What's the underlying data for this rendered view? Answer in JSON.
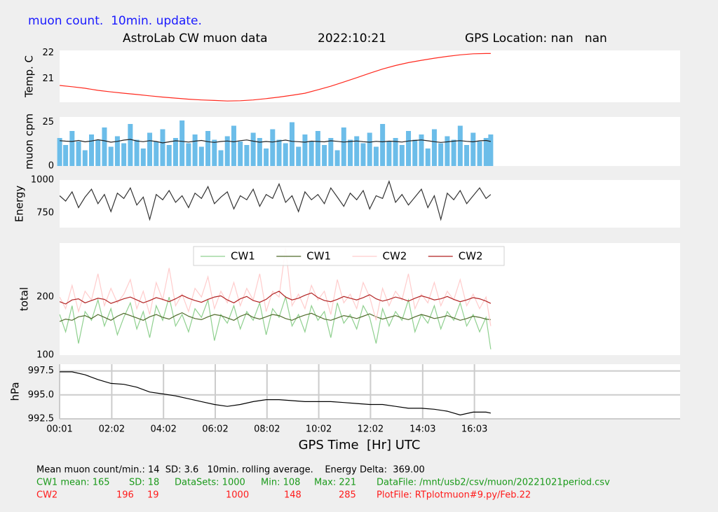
{
  "header": {
    "subtitle": "muon count.  10min. update.",
    "title": "AstroLab CW muon data",
    "date": "2022:10:21",
    "location": "GPS Location: nan   nan"
  },
  "chart_data": [
    {
      "type": "line",
      "ylabel": "Temp. C",
      "xlim": [
        0.017,
        24
      ],
      "ylim": [
        20.1,
        22.1
      ],
      "yticks": [
        21,
        22
      ],
      "x": [
        0.02,
        0.5,
        1,
        1.5,
        2,
        2.5,
        3,
        3.5,
        4,
        4.5,
        5,
        5.5,
        6,
        6.5,
        7,
        7.5,
        8,
        8.5,
        9,
        9.5,
        10,
        10.5,
        11,
        11.5,
        12,
        12.5,
        13,
        13.5,
        14,
        14.5,
        15,
        15.5,
        16,
        16.5,
        16.68
      ],
      "series": [
        {
          "color": "#ff2a1f",
          "values": [
            20.75,
            20.7,
            20.64,
            20.56,
            20.5,
            20.45,
            20.4,
            20.35,
            20.3,
            20.26,
            20.22,
            20.19,
            20.17,
            20.15,
            20.16,
            20.19,
            20.24,
            20.3,
            20.37,
            20.45,
            20.58,
            20.72,
            20.88,
            21.05,
            21.22,
            21.38,
            21.52,
            21.63,
            21.72,
            21.8,
            21.87,
            21.93,
            21.97,
            21.98,
            21.98
          ]
        }
      ]
    },
    {
      "type": "bar",
      "ylabel": "muon cpm",
      "xlim": [
        0.017,
        24
      ],
      "ylim": [
        0,
        28
      ],
      "yticks": [
        0,
        25
      ],
      "x": [
        0.02,
        0.25,
        0.5,
        0.75,
        1,
        1.25,
        1.5,
        1.75,
        2,
        2.25,
        2.5,
        2.75,
        3,
        3.25,
        3.5,
        3.75,
        4,
        4.25,
        4.5,
        4.75,
        5,
        5.25,
        5.5,
        5.75,
        6,
        6.25,
        6.5,
        6.75,
        7,
        7.25,
        7.5,
        7.75,
        8,
        8.25,
        8.5,
        8.75,
        9,
        9.25,
        9.5,
        9.75,
        10,
        10.25,
        10.5,
        10.75,
        11,
        11.25,
        11.5,
        11.75,
        12,
        12.25,
        12.5,
        12.75,
        13,
        13.25,
        13.5,
        13.75,
        14,
        14.25,
        14.5,
        14.75,
        15,
        15.25,
        15.5,
        15.75,
        16,
        16.25,
        16.5,
        16.68
      ],
      "series": [
        {
          "type": "bar",
          "color": "#6cbde9",
          "values": [
            16,
            12,
            20,
            14,
            9,
            18,
            15,
            22,
            11,
            17,
            13,
            24,
            15,
            10,
            19,
            14,
            21,
            12,
            16,
            26,
            13,
            18,
            11,
            20,
            15,
            9,
            17,
            23,
            14,
            12,
            19,
            16,
            10,
            21,
            15,
            13,
            25,
            11,
            18,
            14,
            20,
            12,
            16,
            9,
            22,
            15,
            17,
            13,
            19,
            11,
            24,
            14,
            16,
            12,
            20,
            15,
            18,
            10,
            21,
            13,
            17,
            15,
            23,
            12,
            19,
            14,
            16,
            18
          ]
        },
        {
          "type": "line",
          "color": "#222222",
          "values": [
            14.5,
            14.2,
            14.0,
            14.6,
            13.8,
            14.3,
            15.0,
            14.4,
            13.6,
            14.1,
            14.8,
            15.2,
            14.3,
            13.9,
            14.5,
            14.0,
            13.2,
            13.8,
            14.4,
            14.1,
            13.7,
            14.2,
            14.6,
            13.9,
            13.5,
            14.0,
            14.3,
            13.8,
            14.5,
            14.9,
            14.2,
            13.6,
            14.0,
            13.7,
            14.3,
            14.8,
            14.1,
            13.9,
            13.6,
            14.2,
            14.0,
            13.8,
            14.4,
            14.1,
            13.7,
            14.0,
            14.3,
            13.9,
            13.6,
            14.1,
            13.8,
            14.2,
            14.0,
            13.7,
            14.3,
            14.6,
            14.9,
            14.4,
            13.9,
            13.5,
            13.8,
            14.2,
            14.5,
            14.1,
            13.8,
            14.4,
            14.6,
            14.0
          ]
        }
      ]
    },
    {
      "type": "line",
      "ylabel": "Energy",
      "xlim": [
        0.017,
        24
      ],
      "ylim": [
        638,
        1000
      ],
      "yticks": [
        750,
        1000
      ],
      "x": [
        0.02,
        0.25,
        0.5,
        0.75,
        1,
        1.25,
        1.5,
        1.75,
        2,
        2.25,
        2.5,
        2.75,
        3,
        3.25,
        3.5,
        3.75,
        4,
        4.25,
        4.5,
        4.75,
        5,
        5.25,
        5.5,
        5.75,
        6,
        6.25,
        6.5,
        6.75,
        7,
        7.25,
        7.5,
        7.75,
        8,
        8.25,
        8.5,
        8.75,
        9,
        9.25,
        9.5,
        9.75,
        10,
        10.25,
        10.5,
        10.75,
        11,
        11.25,
        11.5,
        11.75,
        12,
        12.25,
        12.5,
        12.75,
        13,
        13.25,
        13.5,
        13.75,
        14,
        14.25,
        14.5,
        14.75,
        15,
        15.25,
        15.5,
        15.75,
        16,
        16.25,
        16.5,
        16.68
      ],
      "series": [
        {
          "color": "#333333",
          "values": [
            880,
            840,
            910,
            790,
            870,
            930,
            820,
            890,
            760,
            900,
            860,
            940,
            810,
            870,
            700,
            890,
            850,
            920,
            830,
            880,
            790,
            900,
            860,
            950,
            820,
            870,
            910,
            780,
            880,
            850,
            930,
            800,
            890,
            860,
            970,
            830,
            880,
            760,
            910,
            850,
            890,
            820,
            940,
            870,
            800,
            900,
            850,
            920,
            780,
            880,
            860,
            990,
            830,
            890,
            810,
            870,
            930,
            790,
            880,
            700,
            900,
            850,
            920,
            820,
            880,
            940,
            860,
            890
          ]
        }
      ]
    },
    {
      "type": "line",
      "ylabel": "total",
      "xlim": [
        0.017,
        24
      ],
      "ylim": [
        100,
        293
      ],
      "yticks": [
        100,
        200
      ],
      "legend": "upper center",
      "x": [
        0.02,
        0.25,
        0.5,
        0.75,
        1,
        1.25,
        1.5,
        1.75,
        2,
        2.25,
        2.5,
        2.75,
        3,
        3.25,
        3.5,
        3.75,
        4,
        4.25,
        4.5,
        4.75,
        5,
        5.25,
        5.5,
        5.75,
        6,
        6.25,
        6.5,
        6.75,
        7,
        7.25,
        7.5,
        7.75,
        8,
        8.25,
        8.5,
        8.75,
        9,
        9.25,
        9.5,
        9.75,
        10,
        10.25,
        10.5,
        10.75,
        11,
        11.25,
        11.5,
        11.75,
        12,
        12.25,
        12.5,
        12.75,
        13,
        13.25,
        13.5,
        13.75,
        14,
        14.25,
        14.5,
        14.75,
        15,
        15.25,
        15.5,
        15.75,
        16,
        16.25,
        16.5,
        16.68
      ],
      "series": [
        {
          "name": "CW1",
          "color": "#8fd08f",
          "values": [
            170,
            140,
            185,
            120,
            175,
            160,
            195,
            150,
            180,
            135,
            165,
            190,
            145,
            175,
            130,
            185,
            160,
            200,
            150,
            170,
            140,
            180,
            165,
            195,
            125,
            170,
            155,
            185,
            145,
            175,
            160,
            190,
            135,
            180,
            165,
            200,
            150,
            170,
            140,
            185,
            160,
            175,
            130,
            190,
            155,
            170,
            145,
            185,
            165,
            120,
            180,
            150,
            175,
            160,
            195,
            140,
            170,
            155,
            185,
            145,
            175,
            160,
            190,
            150,
            170,
            140,
            165,
            110
          ]
        },
        {
          "name": "CW1",
          "color": "#4f6b2a",
          "values": [
            158,
            162,
            160,
            166,
            168,
            163,
            170,
            165,
            160,
            167,
            172,
            168,
            164,
            160,
            166,
            170,
            165,
            162,
            168,
            173,
            167,
            163,
            161,
            166,
            170,
            168,
            164,
            160,
            167,
            171,
            165,
            162,
            166,
            170,
            168,
            163,
            160,
            165,
            169,
            172,
            167,
            162,
            160,
            164,
            168,
            166,
            163,
            167,
            171,
            166,
            162,
            165,
            168,
            164,
            161,
            166,
            170,
            167,
            163,
            165,
            168,
            164,
            160,
            163,
            167,
            165,
            162,
            161
          ]
        },
        {
          "name": "CW2",
          "color": "#ffcccc",
          "values": [
            200,
            180,
            220,
            175,
            210,
            195,
            240,
            185,
            215,
            190,
            205,
            230,
            180,
            210,
            170,
            225,
            195,
            250,
            185,
            205,
            175,
            215,
            200,
            235,
            180,
            210,
            190,
            225,
            185,
            215,
            195,
            240,
            175,
            210,
            200,
            285,
            185,
            205,
            180,
            220,
            195,
            210,
            170,
            230,
            190,
            205,
            180,
            225,
            200,
            160,
            215,
            185,
            210,
            195,
            240,
            180,
            205,
            190,
            225,
            185,
            210,
            195,
            230,
            185,
            205,
            180,
            200,
            150
          ]
        },
        {
          "name": "CW2",
          "color": "#b22222",
          "values": [
            192,
            188,
            195,
            197,
            190,
            194,
            198,
            196,
            189,
            193,
            197,
            200,
            195,
            190,
            194,
            199,
            196,
            192,
            197,
            203,
            198,
            194,
            191,
            196,
            200,
            202,
            195,
            190,
            197,
            201,
            194,
            191,
            196,
            205,
            210,
            200,
            195,
            198,
            203,
            207,
            199,
            194,
            192,
            196,
            201,
            198,
            195,
            199,
            204,
            197,
            193,
            196,
            200,
            197,
            193,
            198,
            202,
            199,
            195,
            197,
            201,
            196,
            192,
            195,
            199,
            197,
            193,
            189
          ]
        }
      ]
    },
    {
      "type": "line",
      "ylabel": "hPa",
      "xlabel": "GPS Time  [Hr] UTC",
      "grid": true,
      "xlim": [
        0.017,
        24
      ],
      "ylim": [
        992.5,
        998.2
      ],
      "yticks": [
        992.5,
        {
          "value": 995,
          "label": "995.0"
        },
        997.5
      ],
      "xticks": [
        {
          "value": 0.017,
          "label": "00:01"
        },
        {
          "value": 2.033,
          "label": "02:02"
        },
        {
          "value": 4.033,
          "label": "04:02"
        },
        {
          "value": 6.033,
          "label": "06:02"
        },
        {
          "value": 8.033,
          "label": "08:02"
        },
        {
          "value": 10.033,
          "label": "10:02"
        },
        {
          "value": 12.033,
          "label": "12:02"
        },
        {
          "value": 14.05,
          "label": "14:03"
        },
        {
          "value": 16.05,
          "label": "16:03"
        }
      ],
      "x": [
        0.02,
        0.5,
        1,
        1.5,
        2,
        2.5,
        3,
        3.5,
        4,
        4.5,
        5,
        5.5,
        6,
        6.5,
        7,
        7.5,
        8,
        8.5,
        9,
        9.5,
        10,
        10.5,
        11,
        11.5,
        12,
        12.5,
        13,
        13.5,
        14,
        14.5,
        15,
        15.5,
        16,
        16.5,
        16.68
      ],
      "series": [
        {
          "color": "#000000",
          "values": [
            997.4,
            997.4,
            997.1,
            996.6,
            996.2,
            996.1,
            995.8,
            995.3,
            995.1,
            994.9,
            994.6,
            994.3,
            994.0,
            993.8,
            994.0,
            994.3,
            994.5,
            994.5,
            994.4,
            994.3,
            994.3,
            994.3,
            994.2,
            994.1,
            994.0,
            994.0,
            993.8,
            993.6,
            993.6,
            993.5,
            993.3,
            992.9,
            993.2,
            993.2,
            993.1
          ]
        }
      ]
    }
  ],
  "footer": {
    "summary": "Mean muon count/min.: 14  SD: 3.6   10min. rolling average.    Energy Delta:  369.00",
    "cw1": [
      "CW1 mean: 165",
      "SD: 18",
      "DataSets: 1000",
      "Min: 108",
      "Max: 221",
      "DataFile: /mnt/usb2/csv/muon/20221021period.csv"
    ],
    "cw2": [
      "CW2",
      "196",
      "19",
      "1000",
      "148",
      "285",
      "PlotFile: RTplotmuon#9.py/Feb.22"
    ]
  }
}
